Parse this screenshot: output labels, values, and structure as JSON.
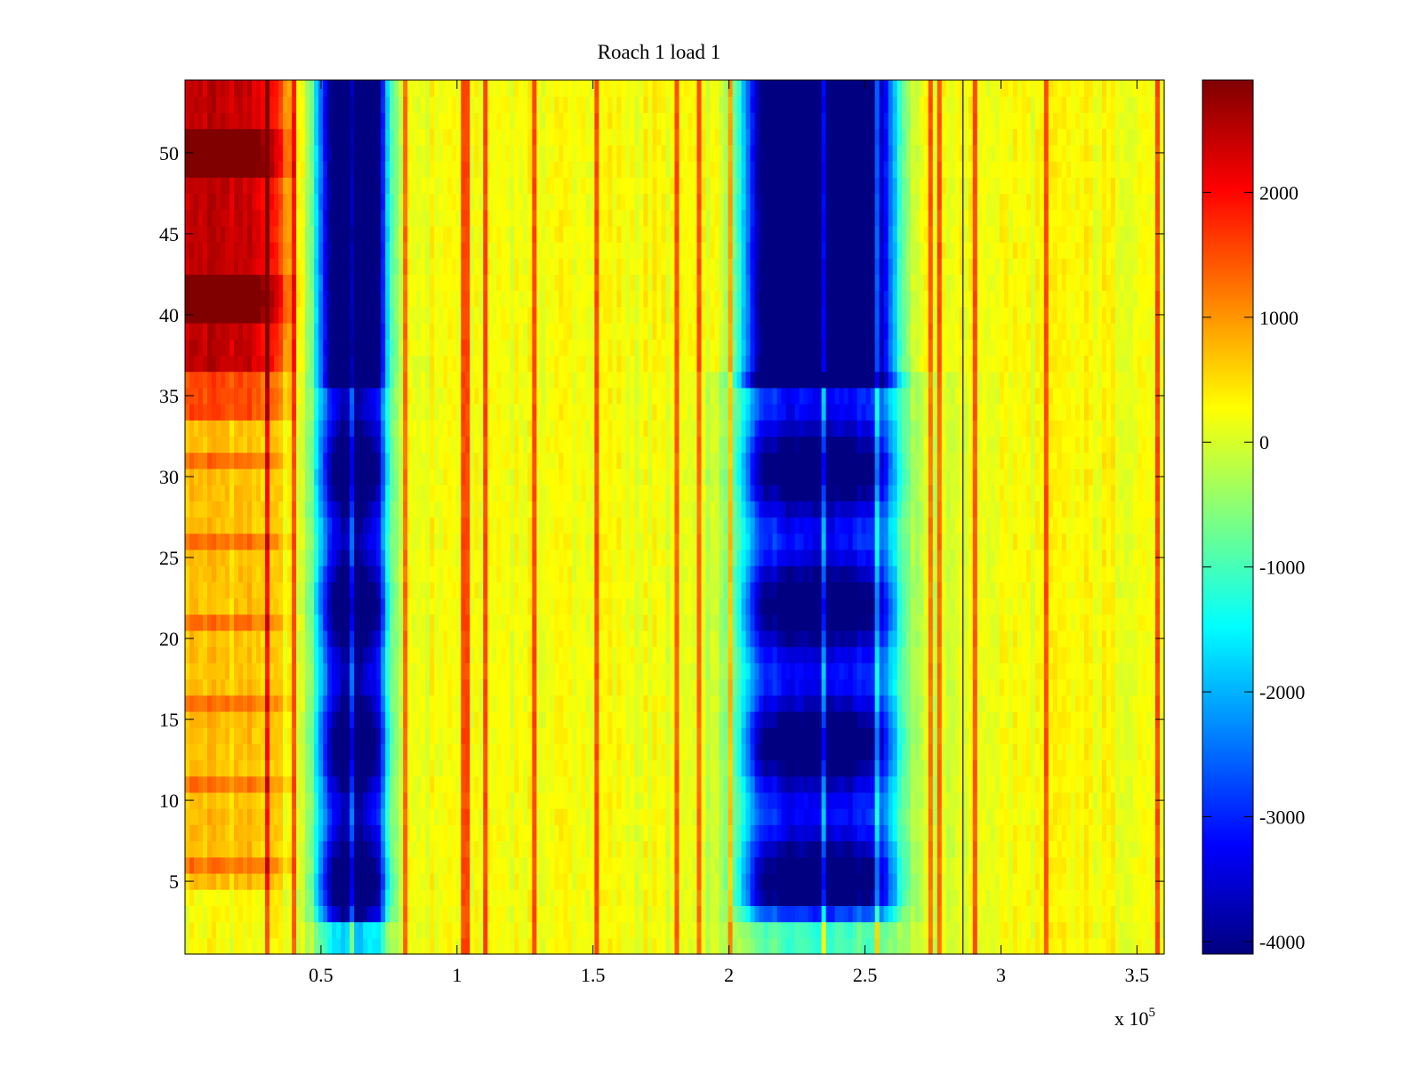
{
  "chart_data": {
    "type": "heatmap",
    "title": "Roach 1 load 1",
    "xlabel": "",
    "ylabel": "",
    "x_exponent_label": "x 10",
    "x_exponent_power": "5",
    "xlim": [
      0,
      3.6
    ],
    "ylim": [
      0.5,
      54.5
    ],
    "xticks": [
      0.5,
      1,
      1.5,
      2,
      2.5,
      3,
      3.5
    ],
    "xtick_labels": [
      "0.5",
      "1",
      "1.5",
      "2",
      "2.5",
      "3",
      "3.5"
    ],
    "yticks": [
      5,
      10,
      15,
      20,
      25,
      30,
      35,
      40,
      45,
      50
    ],
    "ytick_labels": [
      "5",
      "10",
      "15",
      "20",
      "25",
      "30",
      "35",
      "40",
      "45",
      "50"
    ],
    "colormap": "jet",
    "clim": [
      -4100,
      2900
    ],
    "colorbar_ticks": [
      2000,
      1000,
      0,
      -1000,
      -2000,
      -3000,
      -4000
    ],
    "colorbar_tick_labels": [
      "2000",
      "1000",
      "0",
      "-1000",
      "-2000",
      "-3000",
      "-4000"
    ],
    "rows": 54,
    "vertical_marker_x": 2.86,
    "regions": [
      {
        "name": "left-warm-band",
        "x_range": [
          0,
          0.45
        ],
        "y_range": [
          4,
          54
        ],
        "approx_value": 2000
      },
      {
        "name": "first-low-band",
        "x_range": [
          0.5,
          0.75
        ],
        "y_range": [
          3,
          54
        ],
        "approx_value": -3500
      },
      {
        "name": "second-low-band",
        "x_range": [
          2.05,
          2.6
        ],
        "y_range": [
          3,
          54
        ],
        "approx_value": -3000
      },
      {
        "name": "second-low-band-core",
        "x_range": [
          2.1,
          2.6
        ],
        "y_range": [
          36,
          54
        ],
        "approx_value": -4000
      },
      {
        "name": "background",
        "x_range": [
          0,
          3.6
        ],
        "y_range": [
          0.5,
          54.5
        ],
        "approx_value": 300
      }
    ]
  }
}
